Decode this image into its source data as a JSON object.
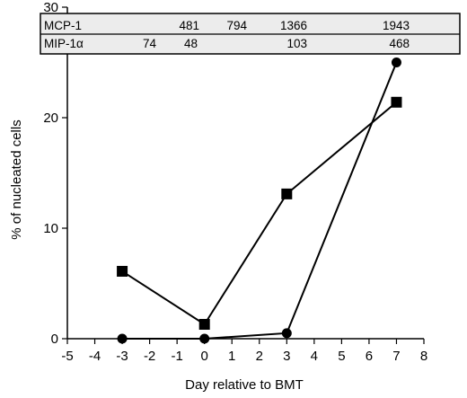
{
  "chart_data": {
    "type": "line",
    "xlabel": "Day relative to BMT",
    "ylabel": "% of nucleated cells",
    "xlim": [
      -5,
      8
    ],
    "ylim": [
      0,
      30
    ],
    "x_ticks": [
      -5,
      -4,
      -3,
      -2,
      -1,
      0,
      1,
      2,
      3,
      4,
      5,
      6,
      7,
      8
    ],
    "y_ticks": [
      0,
      10,
      20,
      30
    ],
    "grid": false,
    "series": [
      {
        "marker": "square",
        "x": [
          -3,
          0,
          3,
          7
        ],
        "y": [
          6.1,
          1.3,
          13.1,
          21.4
        ]
      },
      {
        "marker": "circle",
        "x": [
          -3,
          0,
          3,
          7
        ],
        "y": [
          0,
          0,
          0.5,
          25.0
        ]
      }
    ],
    "table": {
      "rows": [
        {
          "label": "MCP-1",
          "values": [
            "481",
            "794",
            "1366",
            "1943"
          ]
        },
        {
          "label": "MIP-1α",
          "values": [
            "74",
            "48",
            "103",
            "468"
          ]
        }
      ]
    }
  }
}
